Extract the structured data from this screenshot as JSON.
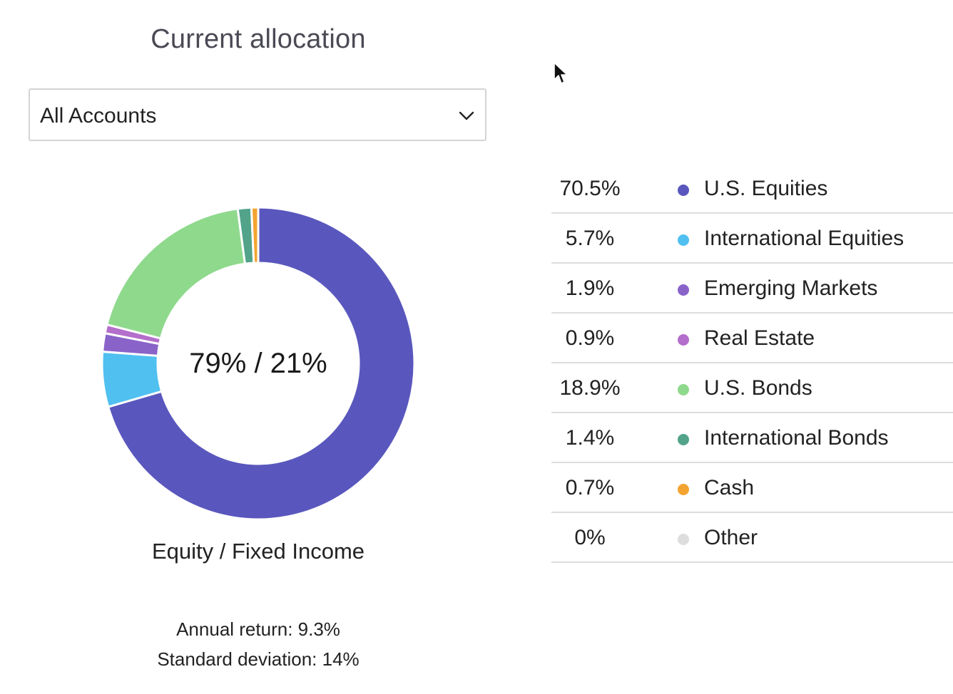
{
  "header": {
    "title": "Current allocation"
  },
  "account_select": {
    "value": "All Accounts",
    "icon": "chevron-down-icon"
  },
  "donut": {
    "center_label": "79% / 21%",
    "subtitle": "Equity / Fixed Income"
  },
  "stats": {
    "annual_return": "Annual return: 9.3%",
    "standard_deviation": "Standard deviation: 14%"
  },
  "chart_data": {
    "type": "pie",
    "categories": [
      "U.S. Equities",
      "International Equities",
      "Emerging Markets",
      "Real Estate",
      "U.S. Bonds",
      "International Bonds",
      "Cash",
      "Other"
    ],
    "values": [
      70.5,
      5.7,
      1.9,
      0.9,
      18.9,
      1.4,
      0.7,
      0
    ],
    "colors": [
      "#5957bd",
      "#50c0f0",
      "#8a63c9",
      "#b46ecb",
      "#8fd98d",
      "#52a38a",
      "#f3a430",
      "#dddddd"
    ],
    "center_label": "79% / 21%",
    "legend": "right"
  },
  "legend": {
    "items": [
      {
        "percent": "70.5%",
        "label": "U.S. Equities",
        "color": "#5957bd"
      },
      {
        "percent": "5.7%",
        "label": "International Equities",
        "color": "#50c0f0"
      },
      {
        "percent": "1.9%",
        "label": "Emerging Markets",
        "color": "#8a63c9"
      },
      {
        "percent": "0.9%",
        "label": "Real Estate",
        "color": "#b46ecb"
      },
      {
        "percent": "18.9%",
        "label": "U.S. Bonds",
        "color": "#8fd98d"
      },
      {
        "percent": "1.4%",
        "label": "International Bonds",
        "color": "#52a38a"
      },
      {
        "percent": "0.7%",
        "label": "Cash",
        "color": "#f3a430"
      },
      {
        "percent": "0%",
        "label": "Other",
        "color": "#dddddd"
      }
    ]
  }
}
